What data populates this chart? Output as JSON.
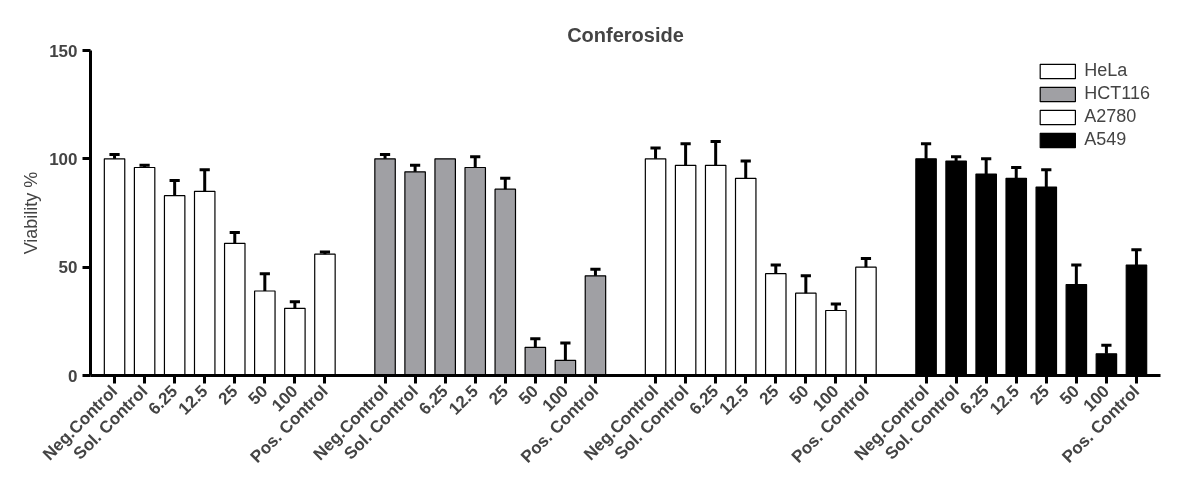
{
  "chart_data": {
    "type": "bar",
    "title": "Conferoside",
    "ylabel": "Viability %",
    "categories": [
      "Neg.Control",
      "Sol. Control",
      "6.25",
      "12.5",
      "25",
      "50",
      "100",
      "Pos. Control",
      null,
      "Neg.Control",
      "Sol. Control",
      "6.25",
      "12.5",
      "25",
      "50",
      "100",
      "Pos. Control",
      null,
      "Neg.Control",
      "Sol. Control",
      "6.25",
      "12.5",
      "25",
      "50",
      "100",
      "Pos. Control",
      null,
      "Neg.Control",
      "Sol. Control",
      "6.25",
      "12.5",
      "25",
      "50",
      "100",
      "Pos. Control"
    ],
    "series": [
      {
        "name": "HeLa",
        "color": "#ffffff",
        "values": [
          100,
          96,
          83,
          85,
          61,
          39,
          31,
          56,
          null,
          null,
          null,
          null,
          null,
          null,
          null,
          null,
          null,
          null,
          null,
          null,
          null,
          null,
          null,
          null,
          null,
          null,
          null,
          null,
          null,
          null,
          null,
          null,
          null,
          null,
          null
        ],
        "errors": [
          [
            100,
            102
          ],
          [
            96,
            97
          ],
          [
            83,
            90
          ],
          [
            85,
            95
          ],
          [
            61,
            66
          ],
          [
            39,
            47
          ],
          [
            31,
            34
          ],
          [
            56,
            57
          ],
          null,
          null,
          null,
          null,
          null,
          null,
          null,
          null,
          null,
          null,
          null,
          null,
          null,
          null,
          null,
          null,
          null,
          null,
          null,
          null,
          null,
          null,
          null,
          null,
          null,
          null,
          null
        ]
      },
      {
        "name": "HCT116",
        "color": "#a0a0a4",
        "values": [
          null,
          null,
          null,
          null,
          null,
          null,
          null,
          null,
          null,
          100,
          94,
          100,
          96,
          86,
          13,
          7,
          46,
          null,
          null,
          null,
          null,
          null,
          null,
          null,
          null,
          null,
          null,
          null,
          null,
          null,
          null,
          null,
          null,
          null,
          null
        ],
        "errors": [
          null,
          null,
          null,
          null,
          null,
          null,
          null,
          null,
          null,
          [
            100,
            102
          ],
          [
            94,
            97
          ],
          null,
          [
            96,
            101
          ],
          [
            86,
            91
          ],
          [
            13,
            17
          ],
          [
            7,
            15
          ],
          [
            46,
            49
          ],
          null,
          null,
          null,
          null,
          null,
          null,
          null,
          null,
          null,
          null,
          null,
          null,
          null,
          null,
          null,
          null,
          null,
          null
        ]
      },
      {
        "name": "A2780",
        "color": "#ffffff",
        "values": [
          null,
          null,
          null,
          null,
          null,
          null,
          null,
          null,
          null,
          null,
          null,
          null,
          null,
          null,
          null,
          null,
          null,
          null,
          100,
          97,
          97,
          91,
          47,
          38,
          30,
          50,
          null,
          null,
          null,
          null,
          null,
          null,
          null,
          null,
          null
        ],
        "errors": [
          null,
          null,
          null,
          null,
          null,
          null,
          null,
          null,
          null,
          null,
          null,
          null,
          null,
          null,
          null,
          null,
          null,
          null,
          [
            100,
            105
          ],
          [
            97,
            107
          ],
          [
            97,
            108
          ],
          [
            91,
            99
          ],
          [
            47,
            51
          ],
          [
            38,
            46
          ],
          [
            30,
            33
          ],
          [
            50,
            54
          ],
          null,
          null,
          null,
          null,
          null,
          null,
          null,
          null,
          null
        ]
      },
      {
        "name": "A549",
        "color": "#000000",
        "values": [
          null,
          null,
          null,
          null,
          null,
          null,
          null,
          null,
          null,
          null,
          null,
          null,
          null,
          null,
          null,
          null,
          null,
          null,
          null,
          null,
          null,
          null,
          null,
          null,
          null,
          null,
          null,
          100,
          99,
          93,
          91,
          87,
          42,
          10,
          51
        ],
        "errors": [
          null,
          null,
          null,
          null,
          null,
          null,
          null,
          null,
          null,
          null,
          null,
          null,
          null,
          null,
          null,
          null,
          null,
          null,
          null,
          null,
          null,
          null,
          null,
          null,
          null,
          null,
          null,
          [
            100,
            107
          ],
          [
            99,
            101
          ],
          [
            93,
            100
          ],
          [
            91,
            96
          ],
          [
            87,
            95
          ],
          [
            42,
            51
          ],
          [
            10,
            14
          ],
          [
            51,
            58
          ]
        ]
      }
    ],
    "ylim": [
      0,
      150
    ],
    "yticks": [
      0,
      50,
      100,
      150
    ],
    "grid": false,
    "legend": "top right"
  }
}
